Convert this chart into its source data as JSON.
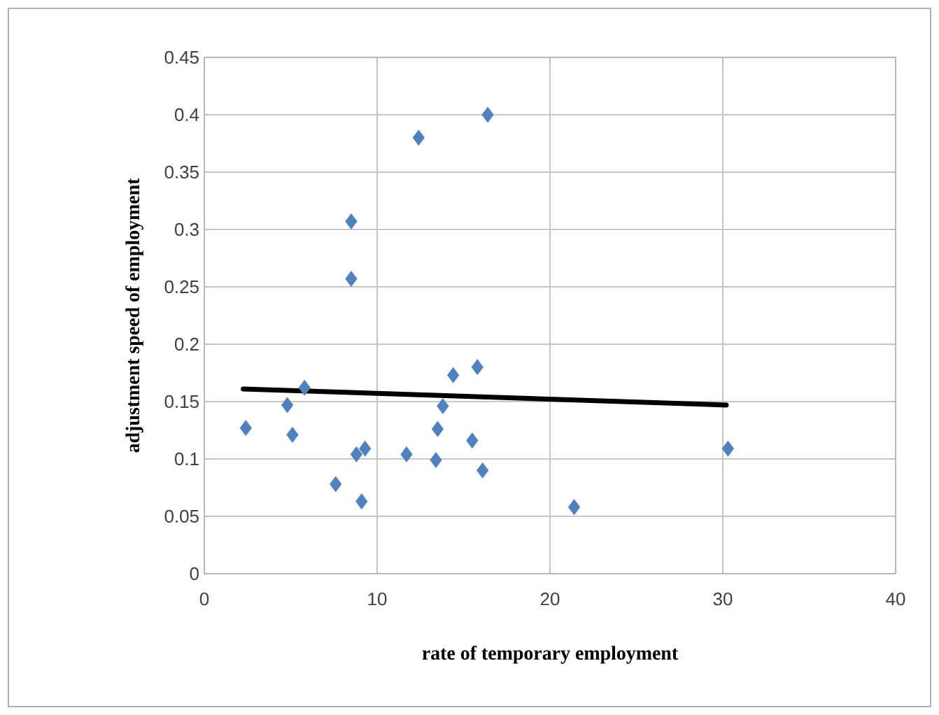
{
  "chart_data": {
    "type": "scatter",
    "xlabel": "rate of temporary employment",
    "ylabel": "adjustment speed of employment",
    "xlim": [
      0,
      40
    ],
    "xticks": [
      0,
      10,
      20,
      30,
      40
    ],
    "ylim": [
      0,
      0.45
    ],
    "yticks": [
      0,
      0.05,
      0.1,
      0.15,
      0.2,
      0.25,
      0.3,
      0.35,
      0.4,
      0.45
    ],
    "grid": true,
    "series": [
      {
        "type": "scatter",
        "color": "#4f81bd",
        "marker": "diamond",
        "x": [
          2.4,
          4.8,
          5.8,
          5.1,
          7.6,
          8.5,
          8.5,
          8.8,
          9.3,
          9.1,
          11.7,
          12.4,
          13.4,
          13.5,
          13.8,
          14.4,
          15.5,
          15.8,
          16.1,
          16.4,
          21.4,
          30.3
        ],
        "values": [
          0.127,
          0.147,
          0.162,
          0.121,
          0.078,
          0.307,
          0.257,
          0.104,
          0.109,
          0.063,
          0.104,
          0.38,
          0.099,
          0.126,
          0.146,
          0.173,
          0.116,
          0.18,
          0.09,
          0.4,
          0.058,
          0.109
        ]
      },
      {
        "type": "line",
        "color": "#000000",
        "marker": "none",
        "x": [
          2.25,
          30.2
        ],
        "values": [
          0.161,
          0.147
        ]
      }
    ]
  }
}
